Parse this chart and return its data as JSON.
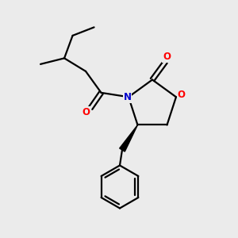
{
  "background_color": "#ebebeb",
  "bond_color": "#000000",
  "N_color": "#0000cc",
  "O_color": "#ff0000",
  "line_width": 1.6,
  "figsize": [
    3.0,
    3.0
  ],
  "dpi": 100,
  "xlim": [
    0,
    10
  ],
  "ylim": [
    0,
    10
  ]
}
